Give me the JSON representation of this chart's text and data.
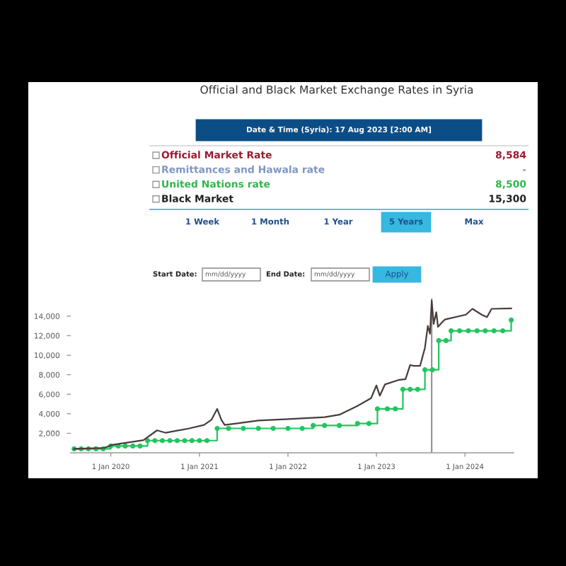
{
  "chart_data": [
    {
      "type": "other",
      "title": "Official and Black Market Exchange Rates in Syria",
      "subtitle": "Date & Time (Syria): 17 Aug 2023 [2:00 AM]",
      "categories": [
        "Official Market Rate",
        "Remittances and Hawala rate",
        "United Nations rate",
        "Black Market"
      ],
      "value_labels": [
        "8,584",
        "-",
        "8,500",
        "15,300"
      ],
      "colors": [
        "#9b1b30",
        "#7f96c2",
        "#2eb84b",
        "#222222"
      ],
      "annotations": [
        "1 Week",
        "1 Month",
        "1 Year",
        "5 Years",
        "Max",
        "Start Date:",
        "mm/dd/yyyy",
        "End Date:",
        "mm/dd/yyyy",
        "Apply"
      ]
    },
    {
      "type": "line",
      "grid": false,
      "xlim": [
        "2019-07-20",
        "2024-07-20"
      ],
      "xticks": [
        {
          "value": "2020-01-01",
          "label": "1 Jan 2020"
        },
        {
          "value": "2021-01-01",
          "label": "1 Jan 2021"
        },
        {
          "value": "2022-01-01",
          "label": "1 Jan 2022"
        },
        {
          "value": "2023-01-01",
          "label": "1 Jan 2023"
        },
        {
          "value": "2024-01-01",
          "label": "1 Jan 2024"
        }
      ],
      "ylim": [
        0,
        15800
      ],
      "yticks": [
        {
          "value": 2000,
          "label": "2,000"
        },
        {
          "value": 4000,
          "label": "4,000"
        },
        {
          "value": 6000,
          "label": "6,000"
        },
        {
          "value": 8000,
          "label": "8,000"
        },
        {
          "value": 10000,
          "label": "10,000"
        },
        {
          "value": 12000,
          "label": "12,000"
        },
        {
          "value": 14000,
          "label": "14,000"
        }
      ],
      "ref_lines": [
        {
          "axis": "x",
          "value": "2023-08-17",
          "label": null,
          "color": "#888888"
        }
      ],
      "series": [
        {
          "type": "line",
          "color": "#4a3c3c",
          "marker": "none",
          "x": [
            "2019-08-03",
            "2019-12-05",
            "2020-01-10",
            "2020-05-15",
            "2020-07-10",
            "2020-08-15",
            "2020-11-20",
            "2021-01-20",
            "2021-02-20",
            "2021-03-15",
            "2021-04-01",
            "2021-04-15",
            "2021-06-01",
            "2021-09-01",
            "2022-01-01",
            "2022-06-01",
            "2022-08-01",
            "2022-10-15",
            "2022-12-10",
            "2023-01-01",
            "2023-01-15",
            "2023-02-05",
            "2023-04-01",
            "2023-05-01",
            "2023-05-20",
            "2023-06-05",
            "2023-06-30",
            "2023-07-20",
            "2023-08-01",
            "2023-08-10",
            "2023-08-17",
            "2023-08-25",
            "2023-09-05",
            "2023-09-12",
            "2023-09-30",
            "2023-10-10",
            "2024-01-05",
            "2024-02-01",
            "2024-03-10",
            "2024-04-01",
            "2024-04-20",
            "2024-07-10"
          ],
          "values": [
            400,
            500,
            830,
            1300,
            2300,
            2050,
            2500,
            2850,
            3400,
            4500,
            3400,
            2850,
            3000,
            3300,
            3450,
            3650,
            3900,
            4800,
            5600,
            6900,
            5850,
            7000,
            7450,
            7550,
            9000,
            8900,
            8900,
            10750,
            13000,
            12200,
            15600,
            13200,
            14400,
            12900,
            13400,
            13650,
            14150,
            14750,
            14150,
            13900,
            14750,
            14800
          ]
        },
        {
          "type": "step",
          "color": "#22c55e",
          "marker": "circle",
          "x": [
            "2019-08-03",
            "2019-09-01",
            "2019-10-01",
            "2019-11-01",
            "2019-12-01",
            "2020-01-01",
            "2020-02-01",
            "2020-03-01",
            "2020-04-01",
            "2020-05-01",
            "2020-06-01",
            "2020-07-01",
            "2020-08-01",
            "2020-09-01",
            "2020-10-01",
            "2020-11-01",
            "2020-12-01",
            "2021-01-01",
            "2021-02-01",
            "2021-03-15",
            "2021-05-01",
            "2021-07-01",
            "2021-09-01",
            "2021-11-01",
            "2022-01-01",
            "2022-03-01",
            "2022-04-15",
            "2022-06-01",
            "2022-08-01",
            "2022-10-15",
            "2022-12-01",
            "2023-01-05",
            "2023-02-15",
            "2023-03-20",
            "2023-04-20",
            "2023-05-20",
            "2023-06-20",
            "2023-07-20",
            "2023-08-20",
            "2023-09-15",
            "2023-10-15",
            "2023-11-05",
            "2023-12-10",
            "2024-01-15",
            "2024-02-20",
            "2024-03-25",
            "2024-04-30",
            "2024-06-05",
            "2024-07-10"
          ],
          "values": [
            400,
            400,
            400,
            400,
            400,
            700,
            700,
            700,
            700,
            700,
            1250,
            1250,
            1250,
            1250,
            1250,
            1250,
            1250,
            1250,
            1250,
            2500,
            2500,
            2500,
            2500,
            2500,
            2500,
            2500,
            2800,
            2800,
            2800,
            3000,
            3000,
            4500,
            4500,
            4500,
            6500,
            6500,
            6500,
            8500,
            8500,
            11500,
            11500,
            12500,
            12500,
            12500,
            12500,
            12500,
            12500,
            12500,
            13600
          ]
        }
      ]
    }
  ]
}
